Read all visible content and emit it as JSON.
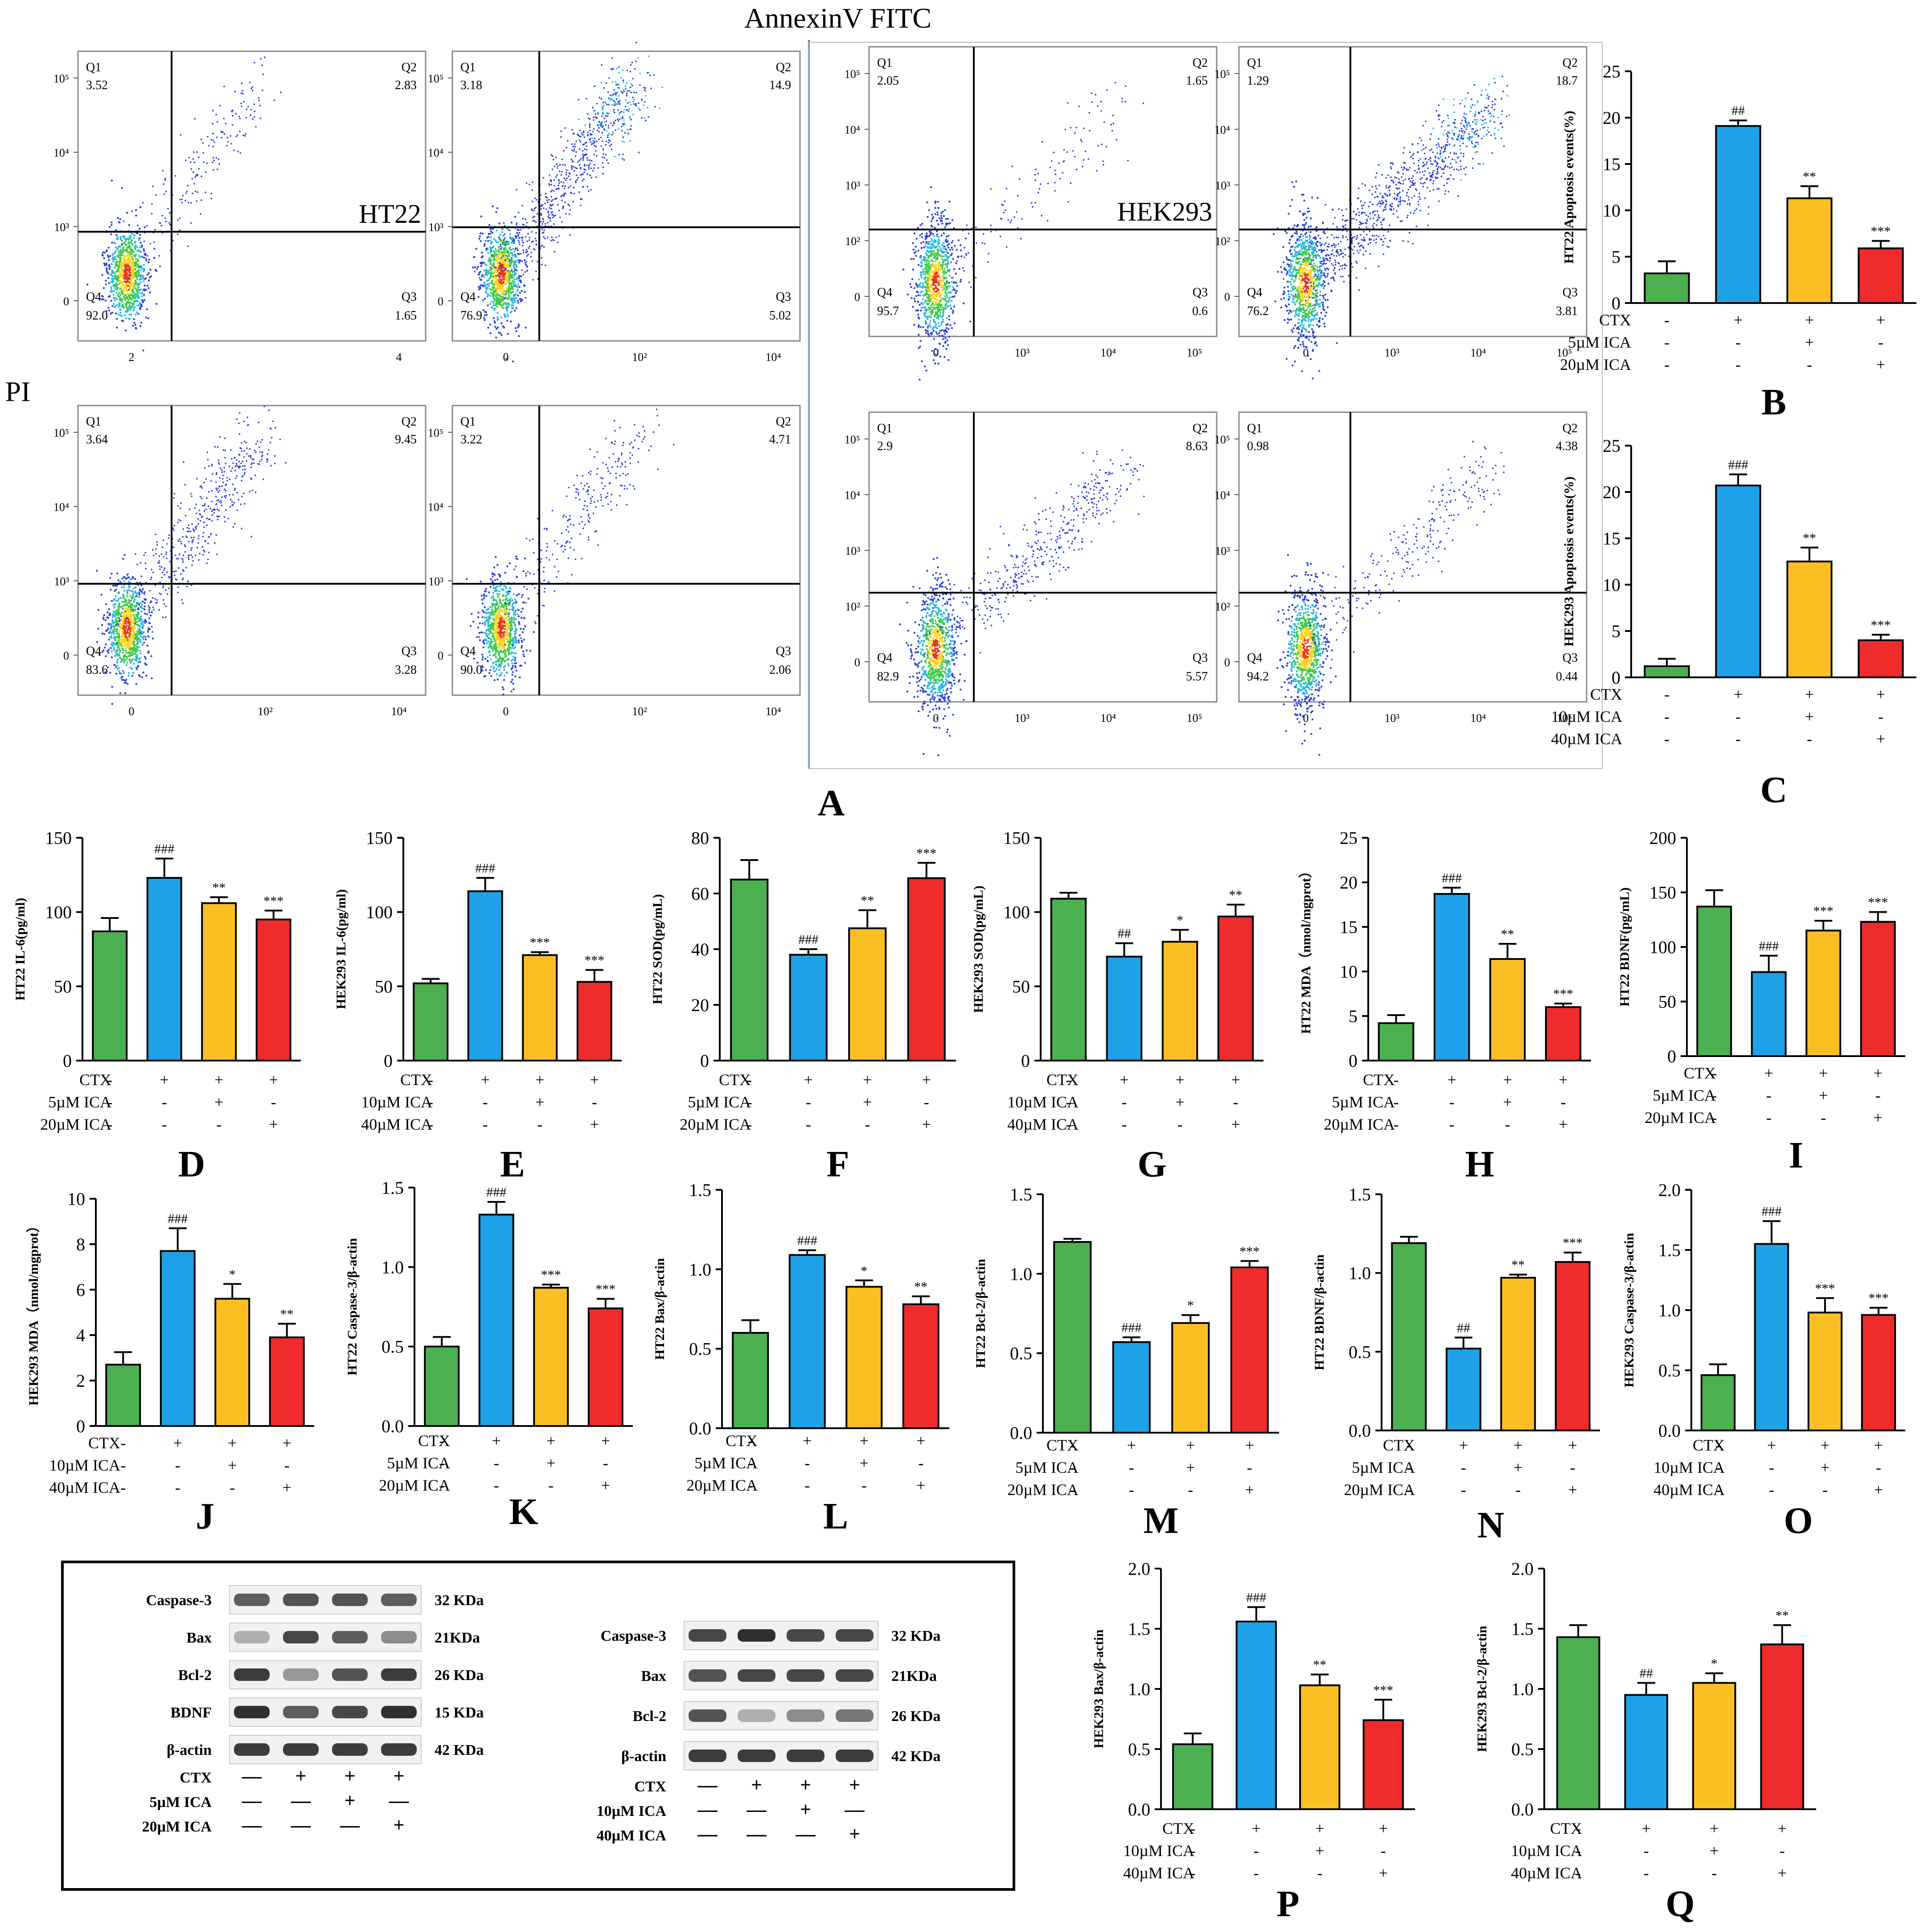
{
  "figure_title": "AnnexinV FITC",
  "y_axis_title": "PI",
  "panel_A_letter": "A",
  "cell_line_labels": [
    "HT22",
    "HEK293"
  ],
  "flow_axis_ticks": {
    "y_top": [
      "10⁵",
      "10⁴",
      "10³",
      "0"
    ],
    "y_bottom_hek": [
      "10⁵",
      "10⁴",
      "10³",
      "10²",
      "0"
    ],
    "x_ht22_1": [
      "2",
      "4"
    ],
    "x_ht22": [
      "0",
      "10²",
      "10⁴"
    ],
    "x_hek": [
      "0",
      "10³",
      "10⁴",
      "10⁵"
    ]
  },
  "flow_plots": [
    {
      "id": "ht22-control",
      "label": "HT22",
      "q1": "3.52",
      "q2": "2.83",
      "q3": "1.65",
      "q4": "92.0"
    },
    {
      "id": "ht22-ctx",
      "label": "",
      "q1": "3.18",
      "q2": "14.9",
      "q3": "5.02",
      "q4": "76.9"
    },
    {
      "id": "ht22-ctx-5",
      "label": "",
      "q1": "3.64",
      "q2": "9.45",
      "q3": "3.28",
      "q4": "83.6"
    },
    {
      "id": "ht22-ctx-20",
      "label": "",
      "q1": "3.22",
      "q2": "4.71",
      "q3": "2.06",
      "q4": "90.0"
    },
    {
      "id": "hek-control",
      "label": "HEK293",
      "q1": "2.05",
      "q2": "1.65",
      "q3": "0.6",
      "q4": "95.7"
    },
    {
      "id": "hek-ctx",
      "label": "",
      "q1": "1.29",
      "q2": "18.7",
      "q3": "3.81",
      "q4": "76.2"
    },
    {
      "id": "hek-ctx-10",
      "label": "",
      "q1": "2.9",
      "q2": "8.63",
      "q3": "5.57",
      "q4": "82.9"
    },
    {
      "id": "hek-ctx-40",
      "label": "",
      "q1": "0.98",
      "q2": "4.38",
      "q3": "0.44",
      "q4": "94.2"
    }
  ],
  "treatment_rows": {
    "ht22": [
      {
        "label": "CTX",
        "signs": [
          "-",
          "+",
          "+",
          "+"
        ]
      },
      {
        "label": "5µM ICA",
        "signs": [
          "-",
          "-",
          "+",
          "-"
        ]
      },
      {
        "label": "20µM ICA",
        "signs": [
          "-",
          "-",
          "-",
          "+"
        ]
      }
    ],
    "hek": [
      {
        "label": "CTX",
        "signs": [
          "-",
          "+",
          "+",
          "+"
        ]
      },
      {
        "label": "10µM ICA",
        "signs": [
          "-",
          "-",
          "+",
          "-"
        ]
      },
      {
        "label": "40µM ICA",
        "signs": [
          "-",
          "-",
          "-",
          "+"
        ]
      }
    ]
  },
  "chart_data": [
    {
      "id": "B",
      "letter": "B",
      "type": "bar",
      "ylabel": "HT22 Apoptosis events(%)",
      "ylim": [
        0,
        25
      ],
      "ticks": [
        0,
        5,
        10,
        15,
        20,
        25
      ],
      "tick_labels": [
        "0",
        "5",
        "10",
        "15",
        "20",
        "25"
      ],
      "values": [
        3.2,
        19.1,
        11.3,
        5.9
      ],
      "errors": [
        1.3,
        0.6,
        1.3,
        0.8
      ],
      "marks": [
        "",
        "##",
        "**",
        "***"
      ],
      "rows": "ht22"
    },
    {
      "id": "C",
      "letter": "C",
      "type": "bar",
      "ylabel": "HEK293 Apoptosis events(%)",
      "ylim": [
        0,
        25
      ],
      "ticks": [
        0,
        5,
        10,
        15,
        20,
        25
      ],
      "tick_labels": [
        "0",
        "5",
        "10",
        "15",
        "20",
        "25"
      ],
      "values": [
        1.2,
        20.7,
        12.5,
        4.0
      ],
      "errors": [
        0.8,
        1.2,
        1.5,
        0.6
      ],
      "marks": [
        "",
        "###",
        "**",
        "***"
      ],
      "rows": "hek"
    },
    {
      "id": "D",
      "letter": "D",
      "type": "bar",
      "ylabel": "HT22 IL-6(pg/ml)",
      "ylim": [
        0,
        150
      ],
      "ticks": [
        0,
        50,
        100,
        150
      ],
      "tick_labels": [
        "0",
        "50",
        "100",
        "150"
      ],
      "values": [
        87,
        123,
        106,
        95
      ],
      "errors": [
        9,
        13,
        4,
        6
      ],
      "marks": [
        "",
        "###",
        "**",
        "***"
      ],
      "rows": "ht22"
    },
    {
      "id": "E",
      "letter": "E",
      "type": "bar",
      "ylabel": "HEK293 IL-6(pg/ml)",
      "ylim": [
        0,
        150
      ],
      "ticks": [
        0,
        50,
        100,
        150
      ],
      "tick_labels": [
        "0",
        "50",
        "100",
        "150"
      ],
      "values": [
        52,
        114,
        71,
        53
      ],
      "errors": [
        3,
        9,
        2,
        8
      ],
      "marks": [
        "",
        "###",
        "***",
        "***"
      ],
      "rows": "hek"
    },
    {
      "id": "F",
      "letter": "F",
      "type": "bar",
      "ylabel": "HT22 SOD(pg/mL)",
      "ylim": [
        0,
        80
      ],
      "ticks": [
        0,
        20,
        40,
        60,
        80
      ],
      "tick_labels": [
        "0",
        "20",
        "40",
        "60",
        "80"
      ],
      "values": [
        65,
        38,
        47.5,
        65.5
      ],
      "errors": [
        7,
        2,
        6.5,
        5.5
      ],
      "marks": [
        "",
        "###",
        "**",
        "***"
      ],
      "rows": "ht22"
    },
    {
      "id": "G",
      "letter": "G",
      "type": "bar",
      "ylabel": "HEK293 SOD(pg/mL)",
      "ylim": [
        0,
        150
      ],
      "ticks": [
        0,
        50,
        100,
        150
      ],
      "tick_labels": [
        "0",
        "50",
        "100",
        "150"
      ],
      "values": [
        109,
        70,
        80,
        97
      ],
      "errors": [
        4,
        9,
        8,
        8
      ],
      "marks": [
        "",
        "##",
        "*",
        "**"
      ],
      "rows": "hek"
    },
    {
      "id": "H",
      "letter": "H",
      "type": "bar",
      "ylabel": "HT22 MDA（nmol/mgprot）",
      "ylim": [
        0,
        25
      ],
      "ticks": [
        0,
        5,
        10,
        15,
        20,
        25
      ],
      "tick_labels": [
        "0",
        "5",
        "10",
        "15",
        "20",
        "25"
      ],
      "values": [
        4.2,
        18.7,
        11.4,
        6.0
      ],
      "errors": [
        0.9,
        0.7,
        1.7,
        0.4
      ],
      "marks": [
        "",
        "###",
        "**",
        "***"
      ],
      "rows": "ht22"
    },
    {
      "id": "I",
      "letter": "I",
      "type": "bar",
      "ylabel": "HT22 BDNF(pg/mL)",
      "ylim": [
        0,
        200
      ],
      "ticks": [
        0,
        50,
        100,
        150,
        200
      ],
      "tick_labels": [
        "0",
        "50",
        "100",
        "150",
        "200"
      ],
      "values": [
        137,
        77,
        115,
        123
      ],
      "errors": [
        15,
        15,
        9,
        9
      ],
      "marks": [
        "",
        "###",
        "***",
        "***"
      ],
      "rows": "ht22"
    },
    {
      "id": "J",
      "letter": "J",
      "type": "bar",
      "ylabel": "HEK293 MDA（nmol/mgprot）",
      "ylim": [
        0,
        10
      ],
      "ticks": [
        0,
        2,
        4,
        6,
        8,
        10
      ],
      "tick_labels": [
        "0",
        "2",
        "4",
        "6",
        "8",
        "10"
      ],
      "values": [
        2.7,
        7.7,
        5.6,
        3.9
      ],
      "errors": [
        0.55,
        1.0,
        0.65,
        0.6
      ],
      "marks": [
        "",
        "###",
        "*",
        "**"
      ],
      "rows": "hek"
    },
    {
      "id": "K",
      "letter": "K",
      "type": "bar",
      "ylabel": "HT22 Caspase-3/β-actin",
      "ylim": [
        0,
        1.5
      ],
      "ticks": [
        0,
        0.5,
        1.0,
        1.5
      ],
      "tick_labels": [
        "0.0",
        "0.5",
        "1.0",
        "1.5"
      ],
      "values": [
        0.5,
        1.33,
        0.87,
        0.74
      ],
      "errors": [
        0.06,
        0.08,
        0.02,
        0.06
      ],
      "marks": [
        "",
        "###",
        "***",
        "***"
      ],
      "rows": "ht22"
    },
    {
      "id": "L",
      "letter": "L",
      "type": "bar",
      "ylabel": "HT22 Bax/β-actin",
      "ylim": [
        0,
        1.5
      ],
      "ticks": [
        0,
        0.5,
        1.0,
        1.5
      ],
      "tick_labels": [
        "0.0",
        "0.5",
        "1.0",
        "1.5"
      ],
      "values": [
        0.6,
        1.09,
        0.89,
        0.78
      ],
      "errors": [
        0.08,
        0.03,
        0.04,
        0.05
      ],
      "marks": [
        "",
        "###",
        "*",
        "**"
      ],
      "rows": "ht22"
    },
    {
      "id": "M",
      "letter": "M",
      "type": "bar",
      "ylabel": "HT22 Bcl-2/β-actin",
      "ylim": [
        0,
        1.5
      ],
      "ticks": [
        0,
        0.5,
        1.0,
        1.5
      ],
      "tick_labels": [
        "0.0",
        "0.5",
        "1.0",
        "1.5"
      ],
      "values": [
        1.2,
        0.57,
        0.69,
        1.04
      ],
      "errors": [
        0.02,
        0.03,
        0.05,
        0.04
      ],
      "marks": [
        "",
        "###",
        "*",
        "***"
      ],
      "rows": "ht22"
    },
    {
      "id": "N",
      "letter": "N",
      "type": "bar",
      "ylabel": "HT22 BDNF/β-actin",
      "ylim": [
        0,
        1.5
      ],
      "ticks": [
        0,
        0.5,
        1.0,
        1.5
      ],
      "tick_labels": [
        "0.0",
        "0.5",
        "1.0",
        "1.5"
      ],
      "values": [
        1.19,
        0.52,
        0.97,
        1.07
      ],
      "errors": [
        0.04,
        0.07,
        0.02,
        0.06
      ],
      "marks": [
        "",
        "##",
        "**",
        "***"
      ],
      "rows": "ht22"
    },
    {
      "id": "O",
      "letter": "O",
      "type": "bar",
      "ylabel": "HEK293 Caspase-3/β-actin",
      "ylim": [
        0,
        2.0
      ],
      "ticks": [
        0,
        0.5,
        1.0,
        1.5,
        2.0
      ],
      "tick_labels": [
        "0.0",
        "0.5",
        "1.0",
        "1.5",
        "2.0"
      ],
      "values": [
        0.46,
        1.55,
        0.98,
        0.96
      ],
      "errors": [
        0.09,
        0.19,
        0.12,
        0.06
      ],
      "marks": [
        "",
        "###",
        "***",
        "***"
      ],
      "rows": "hek"
    },
    {
      "id": "P",
      "letter": "P",
      "type": "bar",
      "ylabel": "HEK293 Bax/β-actin",
      "ylim": [
        0,
        2.0
      ],
      "ticks": [
        0,
        0.5,
        1.0,
        1.5,
        2.0
      ],
      "tick_labels": [
        "0.0",
        "0.5",
        "1.0",
        "1.5",
        "2.0"
      ],
      "values": [
        0.54,
        1.56,
        1.03,
        0.74
      ],
      "errors": [
        0.09,
        0.12,
        0.09,
        0.17
      ],
      "marks": [
        "",
        "###",
        "**",
        "***"
      ],
      "rows": "hek"
    },
    {
      "id": "Q",
      "letter": "Q",
      "type": "bar",
      "ylabel": "HEK293 Bcl-2/β-actin",
      "ylim": [
        0,
        2.0
      ],
      "ticks": [
        0,
        0.5,
        1.0,
        1.5,
        2.0
      ],
      "tick_labels": [
        "0.0",
        "0.5",
        "1.0",
        "1.5",
        "2.0"
      ],
      "values": [
        1.43,
        0.95,
        1.05,
        1.37
      ],
      "errors": [
        0.1,
        0.1,
        0.08,
        0.16
      ],
      "marks": [
        "",
        "##",
        "*",
        "**"
      ],
      "rows": "hek"
    }
  ],
  "bar_colors": [
    "#4caf50",
    "#1ea1e6",
    "#fbbf24",
    "#ef2b2b"
  ],
  "dot_colors": {
    "low": "#2a3fd4",
    "mid": "#28b8e0",
    "high": "#3ccb48",
    "core": "#ffd21e",
    "peak": "#e53b1c"
  },
  "western_blot": {
    "ht22": {
      "rows": [
        {
          "protein": "Caspase-3",
          "kda": "32 KDa"
        },
        {
          "protein": "Bax",
          "kda": "21KDa"
        },
        {
          "protein": "Bcl-2",
          "kda": "26 KDa"
        },
        {
          "protein": "BDNF",
          "kda": "15 KDa"
        },
        {
          "protein": "β-actin",
          "kda": "42 KDa"
        }
      ],
      "intensity": [
        [
          0.7,
          0.75,
          0.75,
          0.7
        ],
        [
          0.35,
          0.8,
          0.7,
          0.5
        ],
        [
          0.85,
          0.45,
          0.75,
          0.85
        ],
        [
          0.9,
          0.7,
          0.8,
          0.9
        ],
        [
          0.85,
          0.85,
          0.85,
          0.85
        ]
      ],
      "treatments": [
        {
          "label": "CTX",
          "signs": [
            "—",
            "+",
            "+",
            "+"
          ]
        },
        {
          "label": "5µM ICA",
          "signs": [
            "—",
            "—",
            "+",
            "—"
          ]
        },
        {
          "label": "20µM ICA",
          "signs": [
            "—",
            "—",
            "—",
            "+"
          ]
        }
      ]
    },
    "hek": {
      "rows": [
        {
          "protein": "Caspase-3",
          "kda": "32 KDa"
        },
        {
          "protein": "Bax",
          "kda": "21KDa"
        },
        {
          "protein": "Bcl-2",
          "kda": "26 KDa"
        },
        {
          "protein": "β-actin",
          "kda": "42 KDa"
        }
      ],
      "intensity": [
        [
          0.8,
          0.9,
          0.8,
          0.8
        ],
        [
          0.75,
          0.8,
          0.8,
          0.8
        ],
        [
          0.75,
          0.35,
          0.5,
          0.6
        ],
        [
          0.85,
          0.85,
          0.85,
          0.85
        ]
      ],
      "treatments": [
        {
          "label": "CTX",
          "signs": [
            "—",
            "+",
            "+",
            "+"
          ]
        },
        {
          "label": "10µM ICA",
          "signs": [
            "—",
            "—",
            "+",
            "—"
          ]
        },
        {
          "label": "40µM ICA",
          "signs": [
            "—",
            "—",
            "—",
            "+"
          ]
        }
      ]
    }
  }
}
